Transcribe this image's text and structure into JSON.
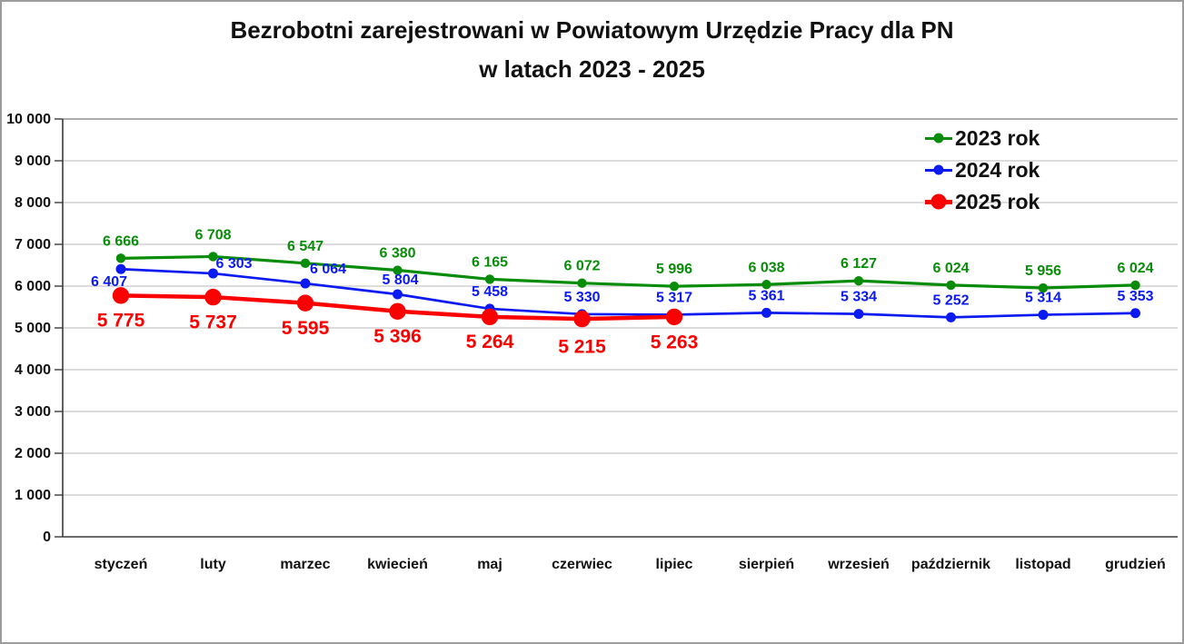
{
  "title": {
    "line1": "Bezrobotni zarejestrowani w Powiatowym Urzędzie Pracy dla PN",
    "line2": "w latach 2023 - 2025"
  },
  "legend": [
    {
      "label": "2023 rok",
      "color": "#098c09"
    },
    {
      "label": "2024 rok",
      "color": "#0b1af0"
    },
    {
      "label": "2025 rok",
      "color": "#fb0000"
    }
  ],
  "chart_data": {
    "type": "line",
    "title": "Bezrobotni zarejestrowani w Powiatowym Urzędzie Pracy dla PN w latach 2023 - 2025",
    "categories": [
      "styczeń",
      "luty",
      "marzec",
      "kwiecień",
      "maj",
      "czerwiec",
      "lipiec",
      "sierpień",
      "wrzesień",
      "październik",
      "listopad",
      "grudzień"
    ],
    "series": [
      {
        "name": "2023 rok",
        "color": "#098c09",
        "values": [
          6666,
          6708,
          6547,
          6380,
          6165,
          6072,
          5996,
          6038,
          6127,
          6024,
          5956,
          6024
        ],
        "labels": [
          "6 666",
          "6 708",
          "6 547",
          "6 380",
          "6 165",
          "6 072",
          "5 996",
          "6 038",
          "6 127",
          "6 024",
          "5 956",
          "6 024"
        ]
      },
      {
        "name": "2024 rok",
        "color": "#0b1af0",
        "values": [
          6407,
          6303,
          6064,
          5804,
          5458,
          5330,
          5317,
          5361,
          5334,
          5252,
          5314,
          5353
        ],
        "labels": [
          "6 407",
          "6 303",
          "6 064",
          "5 804",
          "5 458",
          "5 330",
          "5 317",
          "5 361",
          "5 334",
          "5 252",
          "5 314",
          "5 353"
        ]
      },
      {
        "name": "2025 rok",
        "color": "#fb0000",
        "values": [
          5775,
          5737,
          5595,
          5396,
          5264,
          5215,
          5263
        ],
        "labels": [
          "5 775",
          "5 737",
          "5 595",
          "5 396",
          "5 264",
          "5 215",
          "5 263"
        ]
      }
    ],
    "xlabel": "",
    "ylabel": "",
    "ylim": [
      0,
      10000
    ],
    "ytick_step": 1000,
    "ytick_labels": [
      "0",
      "1 000",
      "2 000",
      "3 000",
      "4 000",
      "5 000",
      "6 000",
      "7 000",
      "8 000",
      "9 000",
      "10 000"
    ],
    "grid": true,
    "legend_position": "top-right"
  }
}
